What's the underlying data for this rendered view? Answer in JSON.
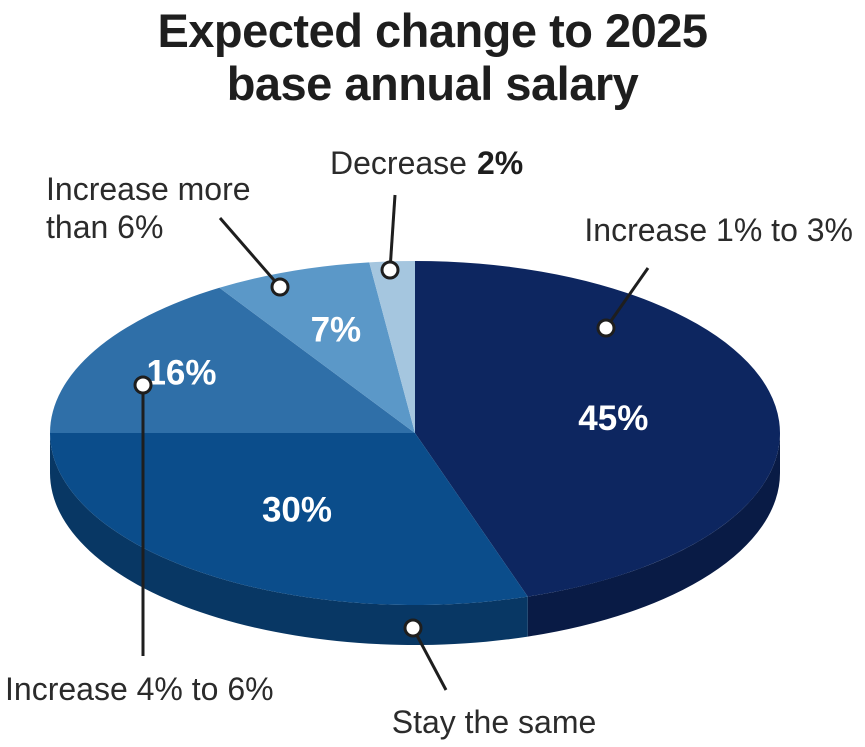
{
  "chart_data": {
    "type": "pie",
    "title_lines": [
      "Expected change to 2025",
      "base annual salary"
    ],
    "slices": [
      {
        "name": "Increase 1% to 3%",
        "value": 45,
        "label": "45%",
        "label_lines": [
          "Increase 1% to 3%"
        ],
        "color": "#0d2660"
      },
      {
        "name": "Stay the same",
        "value": 30,
        "label": "30%",
        "label_lines": [
          "Stay the same"
        ],
        "color": "#0b4d8b"
      },
      {
        "name": "Increase 4% to 6%",
        "value": 16,
        "label": "16%",
        "label_lines": [
          "Increase 4% to 6%"
        ],
        "color": "#2f6fa8"
      },
      {
        "name": "Increase more than 6%",
        "value": 7,
        "label": "7%",
        "label_lines": [
          "Increase more",
          "than 6%"
        ],
        "color": "#5b98c8"
      },
      {
        "name": "Decrease",
        "value": 2,
        "label": "2%",
        "label_lines": [
          "Decrease"
        ],
        "color": "#a5c6df"
      }
    ]
  }
}
